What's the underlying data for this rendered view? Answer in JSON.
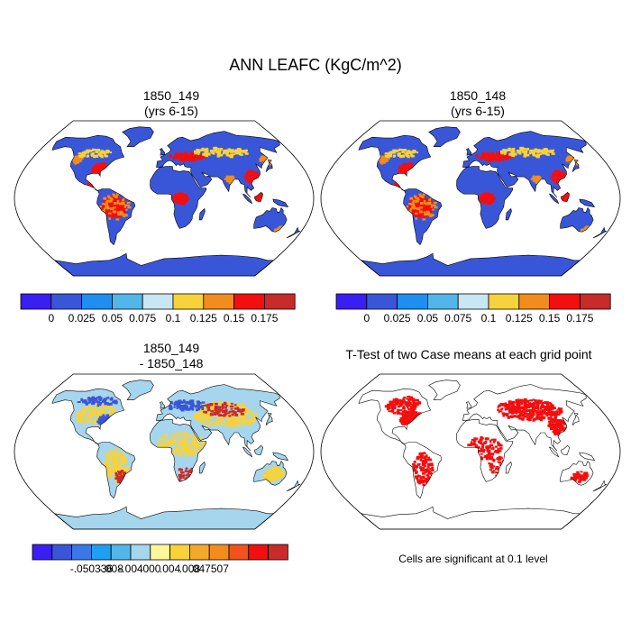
{
  "figure": {
    "title": "ANN LEAFC (KgC/m^2)",
    "panels": [
      {
        "id": "tl",
        "title_line1": "1850_149",
        "title_line2": "(yrs 6-15)"
      },
      {
        "id": "tr",
        "title_line1": "1850_148",
        "title_line2": "(yrs 6-15)"
      },
      {
        "id": "bl",
        "title_line1": "1850_149",
        "title_line2": "- 1850_148"
      },
      {
        "id": "br",
        "title_line1": "T-Test of two Case means at each grid point",
        "title_line2": ""
      }
    ],
    "note": "Cells are significant at 0.1 level"
  },
  "colorbars": {
    "absolute": {
      "colors": [
        "#3b1ff2",
        "#3a56d8",
        "#1e8ef0",
        "#52b6ea",
        "#c8e6f3",
        "#f7d23a",
        "#f28c1d",
        "#f20f0f",
        "#c92a2a"
      ],
      "labels": [
        "0",
        "0.025",
        "0.05",
        "0.075",
        "0.1",
        "0.125",
        "0.15",
        "0.175"
      ]
    },
    "difference": {
      "colors": [
        "#3b1ff2",
        "#3a56d8",
        "#3a78e8",
        "#1e9ff0",
        "#52b6ea",
        "#a6d6ee",
        "#fff59a",
        "#f7d23a",
        "#f5a92c",
        "#f28c1d",
        "#f2521d",
        "#f20f0f",
        "#c92a2a"
      ],
      "labels": [
        "-.050336",
        "-.008",
        "-.004",
        ".000",
        ".004",
        ".008",
        ".047507"
      ]
    }
  },
  "map_colors": {
    "ocean": "#ffffff",
    "outline": "#000000",
    "abs_land": "#3a56d8",
    "abs_high": "#f20f0f",
    "abs_mid": "#f28c1d",
    "abs_low": "#f7d23a",
    "diff_land": "#a6d6ee",
    "diff_pos": "#f7d23a",
    "diff_neg": "#3a56d8",
    "diff_strong": "#c92a2a",
    "ttest_sig": "#f20f0f"
  }
}
